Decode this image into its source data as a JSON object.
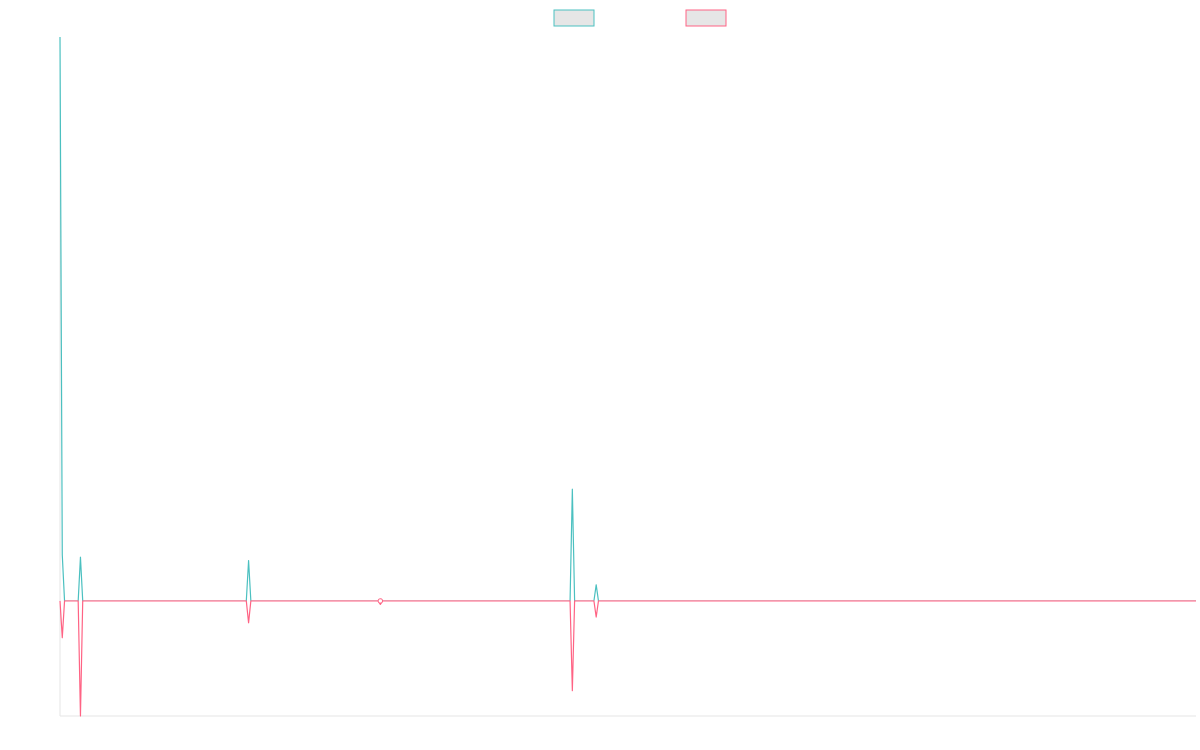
{
  "chart_data": {
    "type": "line",
    "title": "",
    "xlabel": "",
    "ylabel": "",
    "legend": {
      "position": "top-center",
      "labels": [
        "",
        ""
      ]
    },
    "xlim": [
      0,
      1000
    ],
    "ylim": [
      -100,
      490
    ],
    "grid": false,
    "x": [
      0,
      2,
      4,
      16,
      18,
      20,
      164,
      166,
      168,
      280,
      282,
      284,
      449,
      451,
      453,
      470,
      472,
      474,
      1000
    ],
    "series": [
      {
        "name": "",
        "color": "#4bc0c0",
        "values": [
          490,
          40,
          0,
          0,
          38,
          0,
          0,
          35,
          0,
          0,
          0,
          0,
          0,
          97,
          0,
          0,
          14,
          0,
          0
        ]
      },
      {
        "name": "",
        "color": "#ff6384",
        "values": [
          0,
          -32,
          0,
          0,
          -100,
          0,
          0,
          -19,
          0,
          0,
          -3,
          0,
          0,
          -78,
          0,
          0,
          -14,
          0,
          0
        ]
      }
    ]
  }
}
